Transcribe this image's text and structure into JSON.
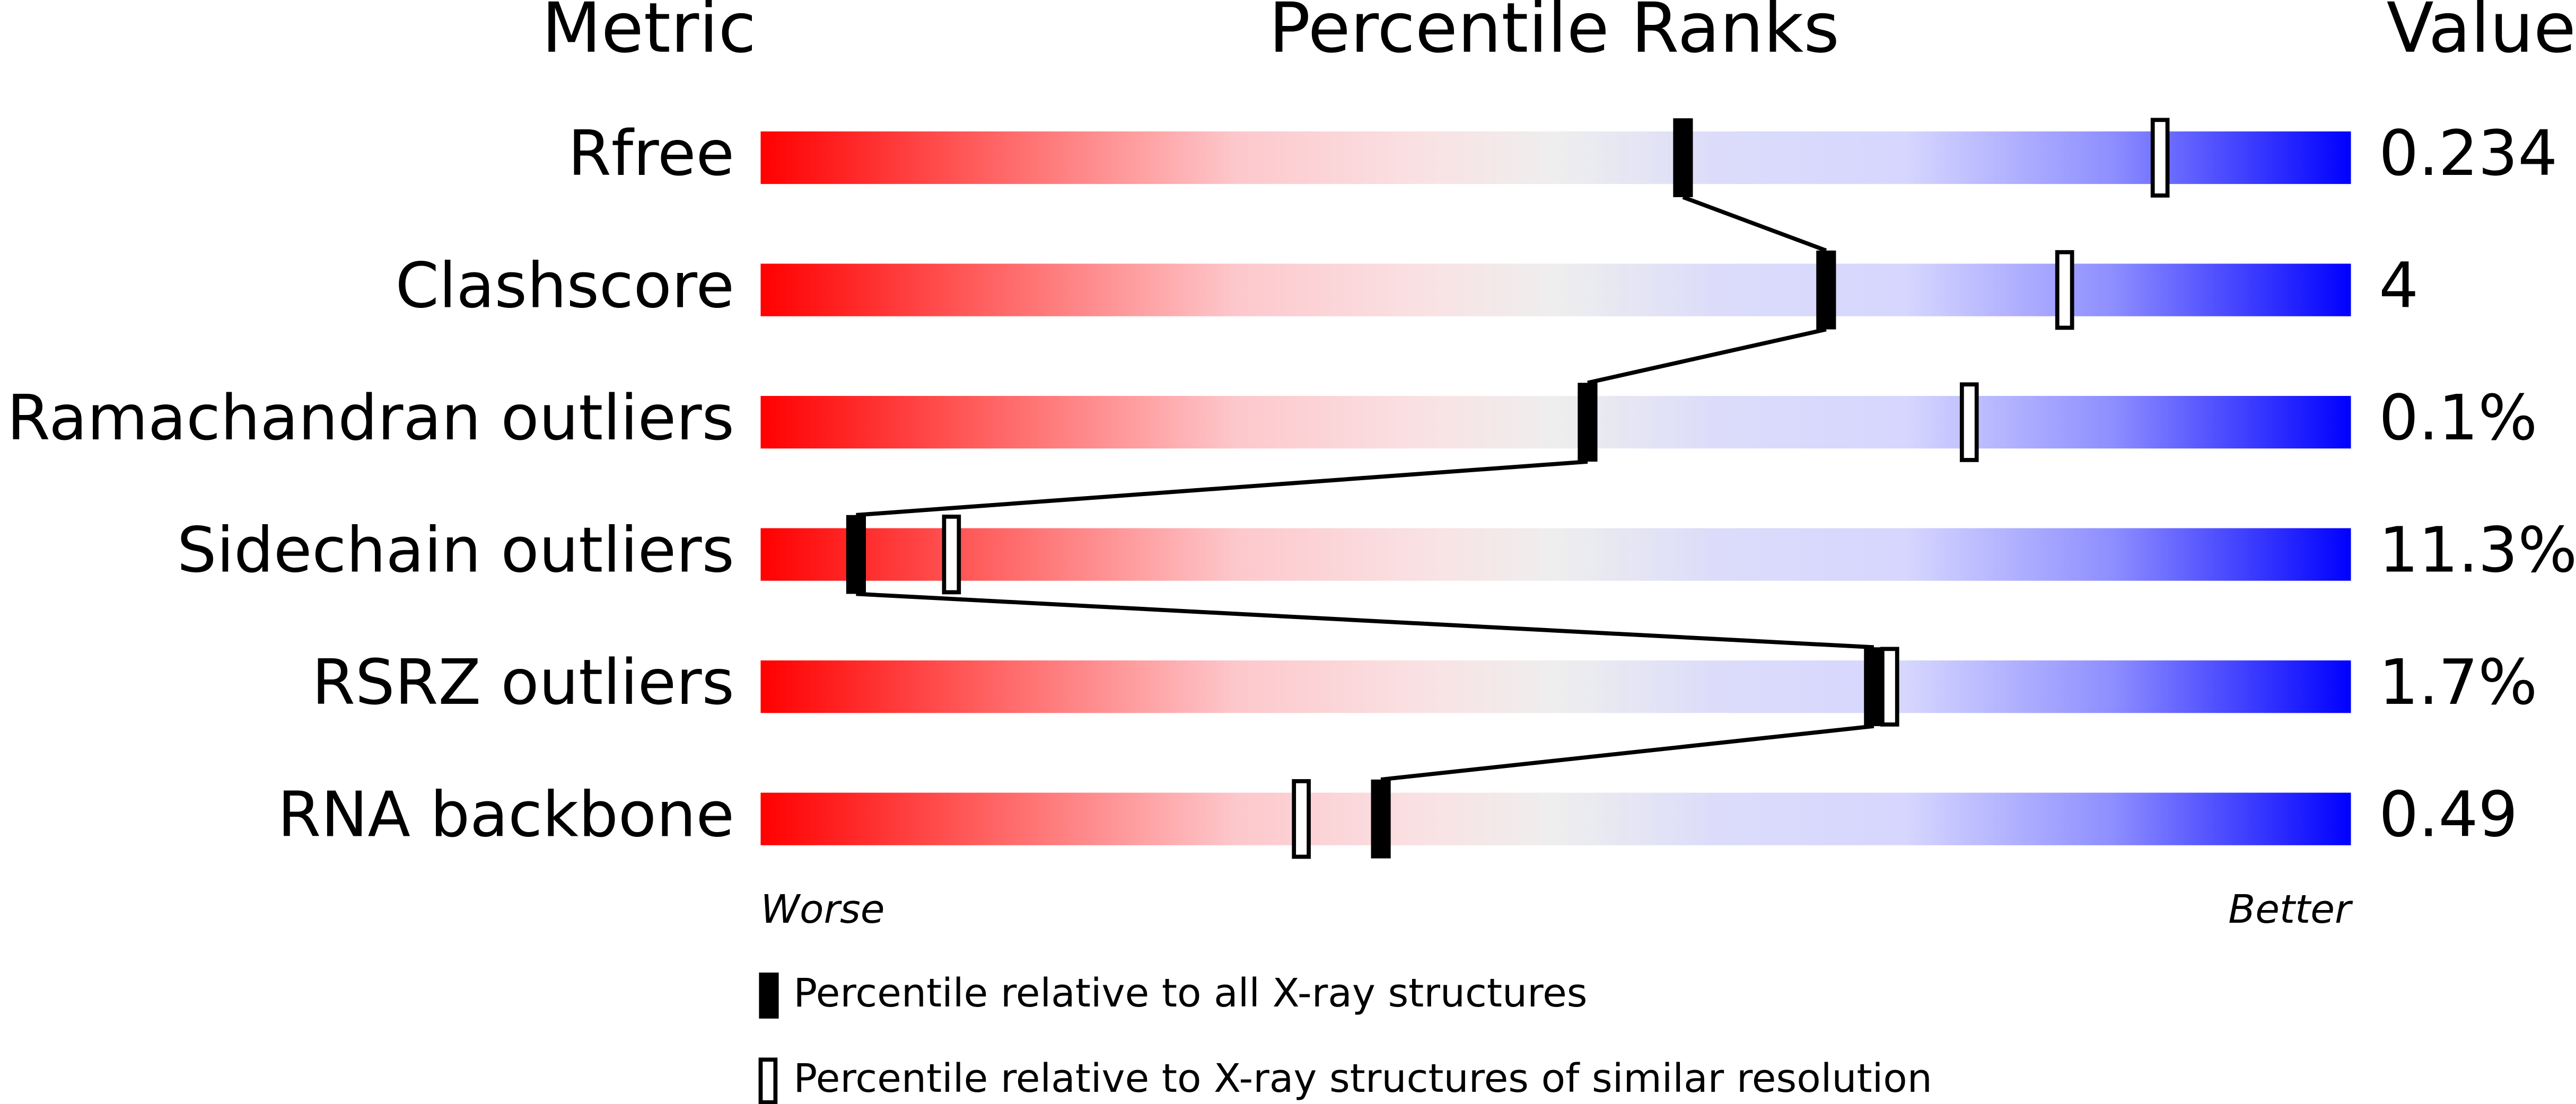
{
  "chart_data": {
    "type": "percentile",
    "headers": {
      "metric": "Metric",
      "ranks": "Percentile Ranks",
      "value": "Value"
    },
    "categories": [
      "Rfree",
      "Clashscore",
      "Ramachandran outliers",
      "Sidechain outliers",
      "RSRZ outliers",
      "RNA backbone"
    ],
    "metric_values": [
      "0.234",
      "4",
      "0.1%",
      "11.3%",
      "1.7%",
      "0.49"
    ],
    "series": [
      {
        "name": "Percentile relative to all X-ray structures",
        "style": "filled",
        "color": "#000000",
        "values": [
          58,
          67,
          52,
          6,
          70,
          39
        ]
      },
      {
        "name": "Percentile relative to X-ray structures of similar resolution",
        "style": "open",
        "color": "#000000",
        "values": [
          88,
          82,
          76,
          12,
          71,
          34
        ]
      }
    ],
    "xlim": [
      0,
      100
    ],
    "axis_labels": {
      "low": "Worse",
      "high": "Better"
    }
  }
}
